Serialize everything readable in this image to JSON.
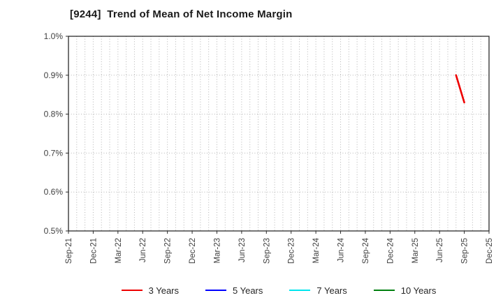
{
  "title": "[9244]  Trend of Mean of Net Income Margin",
  "colors": {
    "background": "#ffffff",
    "title_text": "#1a1a1a",
    "axis_border": "#2b2b2b",
    "tick_text": "#404040",
    "gridline": "#b3b3b3",
    "series_3y": "#ee0000",
    "series_5y": "#0000ff",
    "series_7y": "#00e5ee",
    "series_10y": "#007f0e"
  },
  "chart_data": {
    "type": "line",
    "title": "[9244]  Trend of Mean of Net Income Margin",
    "xlabel": "",
    "ylabel": "",
    "ylim": [
      0.5,
      1.0
    ],
    "y_tick_step": 0.1,
    "y_tick_labels": [
      "1.0%",
      "0.9%",
      "0.8%",
      "0.7%",
      "0.6%",
      "0.5%"
    ],
    "x_start": "Sep-21",
    "x_end": "Dec-25",
    "x_total_months": 51,
    "x_tick_every_months": 3,
    "x_tick_labels": [
      "Sep-21",
      "Dec-21",
      "Mar-22",
      "Jun-22",
      "Sep-22",
      "Dec-22",
      "Mar-23",
      "Jun-23",
      "Sep-23",
      "Dec-23",
      "Mar-24",
      "Jun-24",
      "Sep-24",
      "Dec-24",
      "Mar-25",
      "Jun-25",
      "Sep-25",
      "Dec-25"
    ],
    "grid": "dotted; vertical line each month, horizontal line each 0.1%",
    "legend_position": "bottom-center",
    "series": [
      {
        "name": "3 Years",
        "color": "#ee0000",
        "points": [
          {
            "x": "Aug-25",
            "month_index": 47,
            "value": 0.9
          },
          {
            "x": "Sep-25",
            "month_index": 48,
            "value": 0.83
          }
        ]
      },
      {
        "name": "5 Years",
        "color": "#0000ff",
        "points": []
      },
      {
        "name": "7 Years",
        "color": "#00e5ee",
        "points": []
      },
      {
        "name": "10 Years",
        "color": "#007f0e",
        "points": []
      }
    ]
  },
  "legend": {
    "items": [
      {
        "label": "3 Years"
      },
      {
        "label": "5 Years"
      },
      {
        "label": "7 Years"
      },
      {
        "label": "10 Years"
      }
    ]
  }
}
